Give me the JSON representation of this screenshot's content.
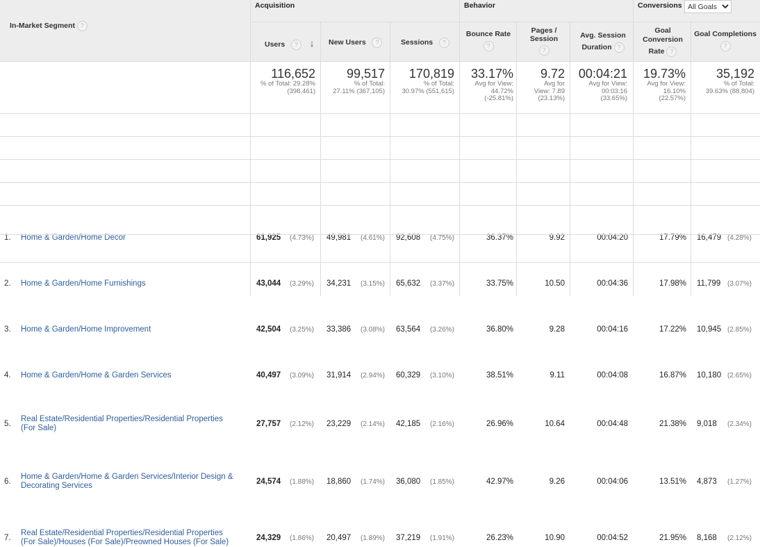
{
  "groups": {
    "acquisition": "Acquisition",
    "behavior": "Behavior",
    "conversions": "Conversions",
    "goals_select": "All Goals"
  },
  "columns": {
    "segment": "In-Market Segment",
    "users": "Users",
    "new_users": "New Users",
    "sessions": "Sessions",
    "bounce_rate": "Bounce Rate",
    "pages_session_1": "Pages /",
    "pages_session_2": "Session",
    "avg_dur_1": "Avg. Session",
    "avg_dur_2": "Duration",
    "goal_conv_1": "Goal",
    "goal_conv_2": "Conversion",
    "goal_conv_3": "Rate",
    "goal_completions": "Goal Completions"
  },
  "totals": {
    "users": "116,652",
    "users_sub1": "% of Total: 29.28%",
    "users_sub2": "(398,461)",
    "new_users": "99,517",
    "new_users_sub1": "% of Total:",
    "new_users_sub2": "27.11% (367,105)",
    "sessions": "170,819",
    "sessions_sub1": "% of Total:",
    "sessions_sub2": "30.97% (551,615)",
    "bounce": "33.17%",
    "bounce_sub1": "Avg for View:",
    "bounce_sub2": "44.72%",
    "bounce_sub3": "(-25.81%)",
    "pages": "9.72",
    "pages_sub1": "Avg for",
    "pages_sub2": "View: 7.89",
    "pages_sub3": "(23.13%)",
    "duration": "00:04:21",
    "duration_sub1": "Avg for View:",
    "duration_sub2": "00:03:16",
    "duration_sub3": "(33.65%)",
    "conv": "19.73%",
    "conv_sub1": "Avg for View:",
    "conv_sub2": "16.10%",
    "conv_sub3": "(22.57%)",
    "completions": "35,192",
    "completions_sub1": "% of Total:",
    "completions_sub2": "39.63% (88,804)"
  },
  "rows": [
    {
      "num": "1.",
      "seg1": "Home & Garden/Home Decor",
      "seg2": "",
      "users": "61,925",
      "users_pct": "(4.73%)",
      "new_users": "49,981",
      "new_users_pct": "(4.61%)",
      "sessions": "92,608",
      "sessions_pct": "(4.75%)",
      "bounce": "36.37%",
      "pages": "9.92",
      "duration": "00:04:20",
      "conv": "17.79%",
      "completions": "16,479",
      "completions_pct": "(4.28%)"
    },
    {
      "num": "2.",
      "seg1": "Home & Garden/Home Furnishings",
      "seg2": "",
      "users": "43,044",
      "users_pct": "(3.29%)",
      "new_users": "34,231",
      "new_users_pct": "(3.15%)",
      "sessions": "65,632",
      "sessions_pct": "(3.37%)",
      "bounce": "33.75%",
      "pages": "10.50",
      "duration": "00:04:36",
      "conv": "17.98%",
      "completions": "11,799",
      "completions_pct": "(3.07%)"
    },
    {
      "num": "3.",
      "seg1": "Home & Garden/Home Improvement",
      "seg2": "",
      "users": "42,504",
      "users_pct": "(3.25%)",
      "new_users": "33,386",
      "new_users_pct": "(3.08%)",
      "sessions": "63,564",
      "sessions_pct": "(3.26%)",
      "bounce": "36.80%",
      "pages": "9.28",
      "duration": "00:04:16",
      "conv": "17.22%",
      "completions": "10,945",
      "completions_pct": "(2.85%)"
    },
    {
      "num": "4.",
      "seg1": "Home & Garden/Home & Garden Services",
      "seg2": "",
      "users": "40,497",
      "users_pct": "(3.09%)",
      "new_users": "31,914",
      "new_users_pct": "(2.94%)",
      "sessions": "60,329",
      "sessions_pct": "(3.10%)",
      "bounce": "38.51%",
      "pages": "9.11",
      "duration": "00:04:08",
      "conv": "16.87%",
      "completions": "10,180",
      "completions_pct": "(2.65%)"
    },
    {
      "num": "5.",
      "seg1": "Real Estate/Residential Properties/Residential Properties",
      "seg2": "(For Sale)",
      "users": "27,757",
      "users_pct": "(2.12%)",
      "new_users": "23,229",
      "new_users_pct": "(2.14%)",
      "sessions": "42,185",
      "sessions_pct": "(2.16%)",
      "bounce": "26.96%",
      "pages": "10.64",
      "duration": "00:04:48",
      "conv": "21.38%",
      "completions": "9,018",
      "completions_pct": "(2.34%)"
    },
    {
      "num": "6.",
      "seg1": "Home & Garden/Home & Garden Services/Interior Design &",
      "seg2": "Decorating Services",
      "users": "24,574",
      "users_pct": "(1.88%)",
      "new_users": "18,860",
      "new_users_pct": "(1.74%)",
      "sessions": "36,080",
      "sessions_pct": "(1.85%)",
      "bounce": "42.97%",
      "pages": "9.26",
      "duration": "00:04:06",
      "conv": "13.51%",
      "completions": "4,873",
      "completions_pct": "(1.27%)"
    },
    {
      "num": "7.",
      "seg1": "Real Estate/Residential Properties/Residential Properties",
      "seg2": "(For Sale)/Houses (For Sale)/Preowned Houses (For Sale)",
      "users": "24,329",
      "users_pct": "(1.86%)",
      "new_users": "20,497",
      "new_users_pct": "(1.89%)",
      "sessions": "37,219",
      "sessions_pct": "(1.91%)",
      "bounce": "26.23%",
      "pages": "10.90",
      "duration": "00:04:52",
      "conv": "21.95%",
      "completions": "8,168",
      "completions_pct": "(2.12%)"
    }
  ]
}
